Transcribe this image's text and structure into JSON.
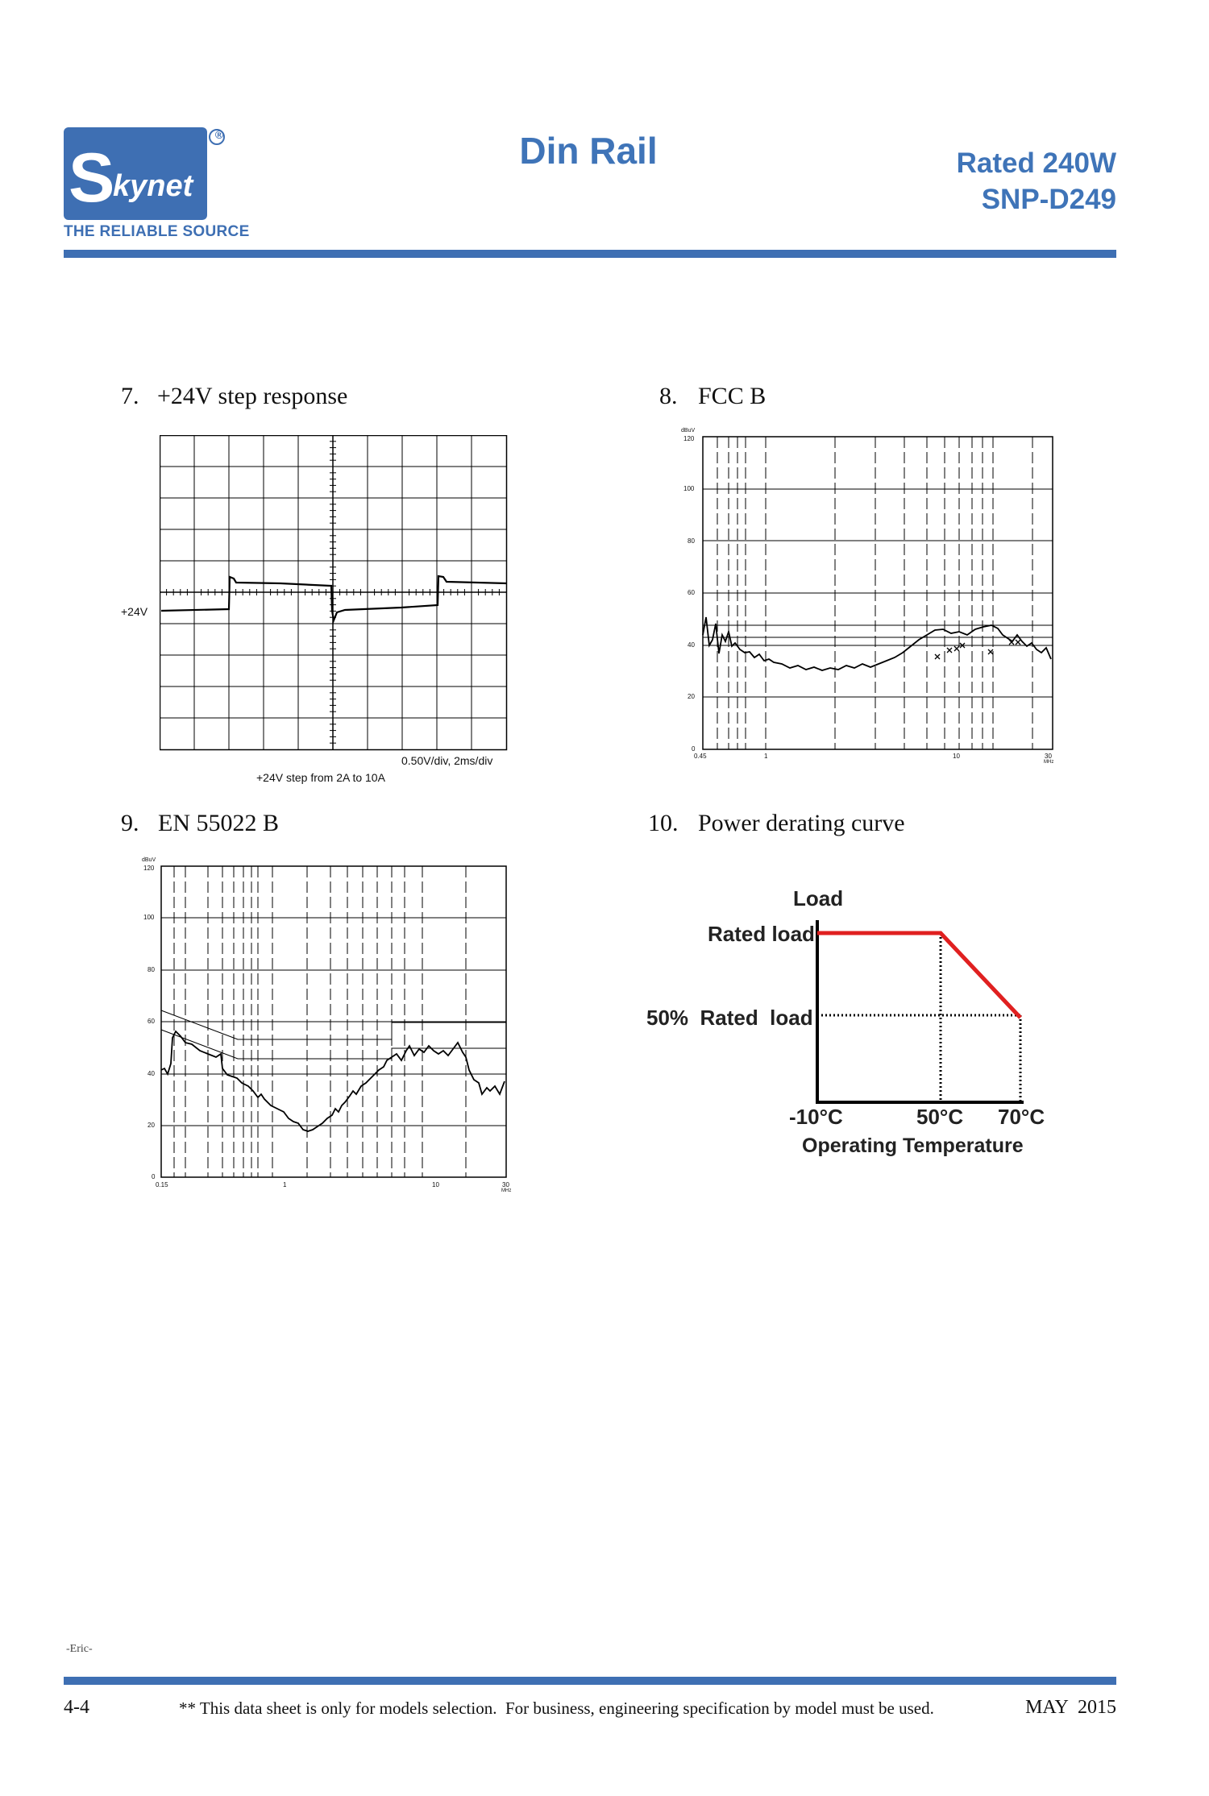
{
  "header": {
    "logo_text": "kynet",
    "logo_registered": "®",
    "tagline": "THE RELIABLE SOURCE",
    "title": "Din Rail",
    "rated": "Rated 240W",
    "model": "SNP-D249",
    "brand_color": "#3e6fb3"
  },
  "sections": {
    "s7": {
      "number": "7.",
      "title": "+24V step response",
      "label_left": "+24V",
      "scale_note": "0.50V/div, 2ms/div",
      "caption": "+24V step from 2A to 10A"
    },
    "s8": {
      "number": "8.",
      "title": "FCC B",
      "y_unit": "dBuV",
      "y_ticks": [
        "120",
        "100",
        "80",
        "60",
        "40",
        "20",
        "0"
      ],
      "x_ticks": [
        "0.45",
        "1",
        "10",
        "30"
      ],
      "x_unit": "MHz"
    },
    "s9": {
      "number": "9.",
      "title": "EN 55022 B",
      "y_unit": "dBuV",
      "y_ticks": [
        "120",
        "100",
        "80",
        "60",
        "40",
        "20",
        "0"
      ],
      "x_ticks": [
        "0.15",
        "1",
        "10",
        "30"
      ],
      "x_unit": "MHz"
    },
    "s10": {
      "number": "10.",
      "title": "Power derating curve",
      "y_axis_title": "Load",
      "rated_label": "Rated load",
      "half_label": "50%  Rated  load",
      "x_ticks": [
        "-10°C",
        "50°C",
        "70°C"
      ],
      "x_axis_title": "Operating Temperature",
      "curve_color": "#e02020"
    }
  },
  "chart_data": [
    {
      "type": "line",
      "title": "Power derating curve",
      "ylabel": "Load",
      "xlabel": "Operating Temperature",
      "x": [
        -10,
        50,
        70
      ],
      "y": [
        100,
        100,
        50
      ],
      "x_unit": "°C",
      "y_unit": "%"
    }
  ],
  "footer": {
    "author": "-Eric-",
    "page": "4-4",
    "note": "** This data sheet is only for models selection.  For business, engineering specification by model must be used.",
    "date": "MAY  2015"
  }
}
